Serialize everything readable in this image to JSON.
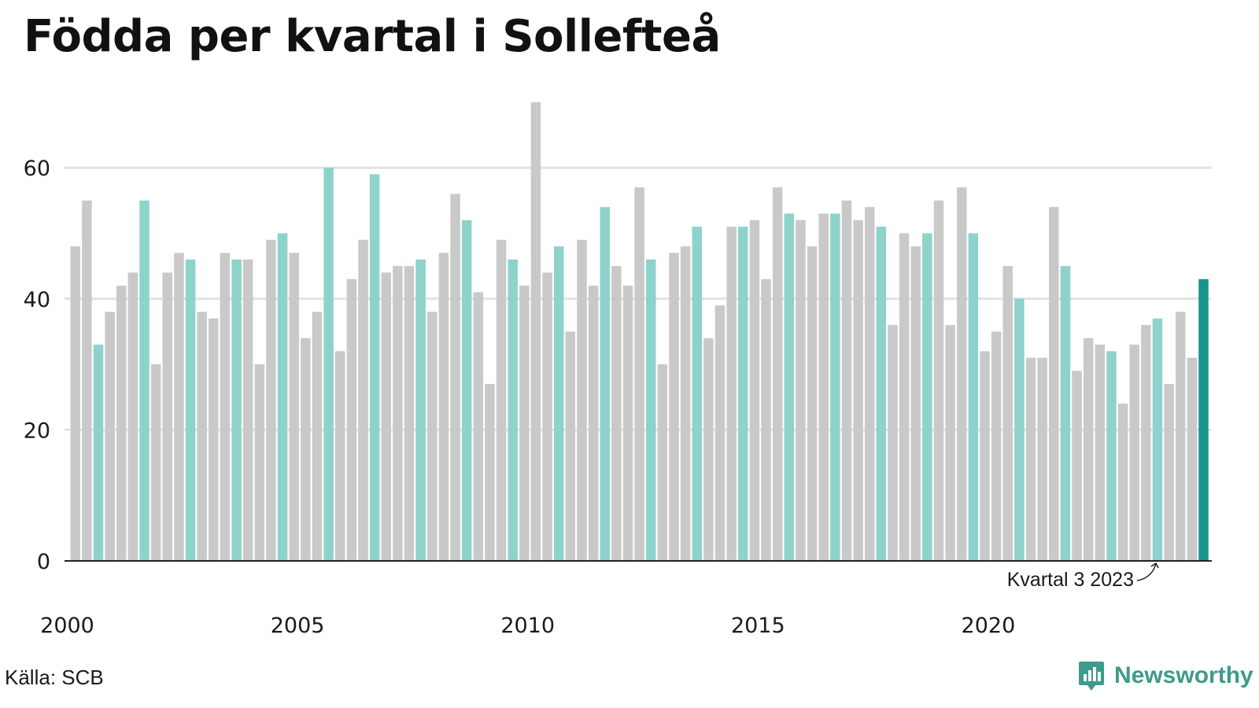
{
  "title": "Födda per kvartal i Sollefteå",
  "source": "Källa: SCB",
  "brand": {
    "name": "Newsworthy",
    "icon": "bar-chart-pin-icon",
    "color": "#3e9a8c"
  },
  "colors": {
    "other": "#c9c9c9",
    "q3": "#8dd3cb",
    "latest": "#16968a",
    "grid": "#e2e2e2",
    "axis": "#222222"
  },
  "chart_data": {
    "type": "bar",
    "title": "Födda per kvartal i Sollefteå",
    "xlabel": "",
    "ylabel": "",
    "ylim": [
      0,
      70
    ],
    "yticks": [
      0,
      20,
      40,
      60
    ],
    "xticks": [
      "2000",
      "2005",
      "2010",
      "2015",
      "2020"
    ],
    "grid": true,
    "highlight": "Kvartal 3 (varje år), senaste kvartal mörkare",
    "annotation": {
      "text": "Kvartal 3 2023",
      "target": "2023 Q3"
    },
    "categories": [
      "2000 Q1",
      "2000 Q2",
      "2000 Q3",
      "2000 Q4",
      "2001 Q1",
      "2001 Q2",
      "2001 Q3",
      "2001 Q4",
      "2002 Q1",
      "2002 Q2",
      "2002 Q3",
      "2002 Q4",
      "2003 Q1",
      "2003 Q2",
      "2003 Q3",
      "2003 Q4",
      "2004 Q1",
      "2004 Q2",
      "2004 Q3",
      "2004 Q4",
      "2005 Q1",
      "2005 Q2",
      "2005 Q3",
      "2005 Q4",
      "2006 Q1",
      "2006 Q2",
      "2006 Q3",
      "2006 Q4",
      "2007 Q1",
      "2007 Q2",
      "2007 Q3",
      "2007 Q4",
      "2008 Q1",
      "2008 Q2",
      "2008 Q3",
      "2008 Q4",
      "2009 Q1",
      "2009 Q2",
      "2009 Q3",
      "2009 Q4",
      "2010 Q1",
      "2010 Q2",
      "2010 Q3",
      "2010 Q4",
      "2011 Q1",
      "2011 Q2",
      "2011 Q3",
      "2011 Q4",
      "2012 Q1",
      "2012 Q2",
      "2012 Q3",
      "2012 Q4",
      "2013 Q1",
      "2013 Q2",
      "2013 Q3",
      "2013 Q4",
      "2014 Q1",
      "2014 Q2",
      "2014 Q3",
      "2014 Q4",
      "2015 Q1",
      "2015 Q2",
      "2015 Q3",
      "2015 Q4",
      "2016 Q1",
      "2016 Q2",
      "2016 Q3",
      "2016 Q4",
      "2017 Q1",
      "2017 Q2",
      "2017 Q3",
      "2017 Q4",
      "2018 Q1",
      "2018 Q2",
      "2018 Q3",
      "2018 Q4",
      "2019 Q1",
      "2019 Q2",
      "2019 Q3",
      "2019 Q4",
      "2020 Q1",
      "2020 Q2",
      "2020 Q3",
      "2020 Q4",
      "2021 Q1",
      "2021 Q2",
      "2021 Q3",
      "2021 Q4",
      "2022 Q1",
      "2022 Q2",
      "2022 Q3",
      "2022 Q4",
      "2023 Q1",
      "2023 Q2",
      "2023 Q3",
      "2023 Q4",
      "2024 Q1",
      "2024 Q2",
      "2024 Q3"
    ],
    "values": [
      48,
      55,
      33,
      38,
      42,
      44,
      55,
      30,
      44,
      47,
      46,
      38,
      37,
      47,
      46,
      46,
      30,
      49,
      50,
      47,
      34,
      38,
      60,
      32,
      43,
      49,
      59,
      44,
      45,
      45,
      46,
      38,
      47,
      56,
      52,
      41,
      27,
      49,
      46,
      42,
      70,
      44,
      48,
      35,
      49,
      42,
      54,
      45,
      42,
      57,
      46,
      30,
      47,
      48,
      51,
      34,
      39,
      51,
      51,
      52,
      43,
      57,
      53,
      52,
      48,
      53,
      53,
      55,
      52,
      54,
      51,
      36,
      50,
      48,
      50,
      55,
      36,
      57,
      50,
      32,
      35,
      45,
      40,
      31,
      31,
      54,
      45,
      29,
      34,
      33,
      32,
      24,
      33,
      36,
      37,
      27,
      38,
      31,
      43
    ]
  }
}
